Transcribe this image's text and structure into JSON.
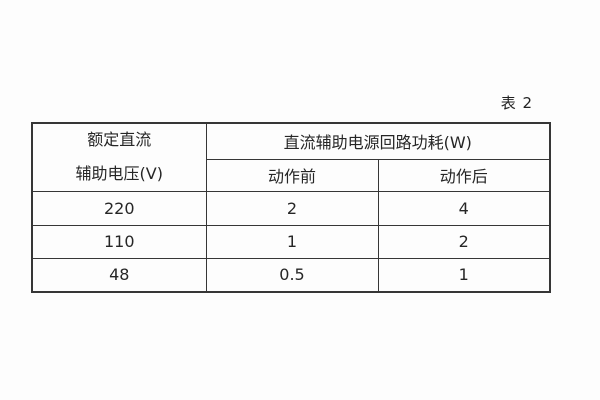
{
  "caption": "表 2",
  "colors": {
    "background": "#fdfdfd",
    "border": "#363636",
    "text": "#262626"
  },
  "table": {
    "row_header": {
      "line1": "额定直流",
      "line2": "辅助电压(V)"
    },
    "group_header": "直流辅助电源回路功耗(W)",
    "sub_headers": {
      "before": "动作前",
      "after": "动作后"
    },
    "rows": [
      {
        "voltage": "220",
        "before": "2",
        "after": "4"
      },
      {
        "voltage": "110",
        "before": "1",
        "after": "2"
      },
      {
        "voltage": "48",
        "before": "0.5",
        "after": "1"
      }
    ]
  }
}
